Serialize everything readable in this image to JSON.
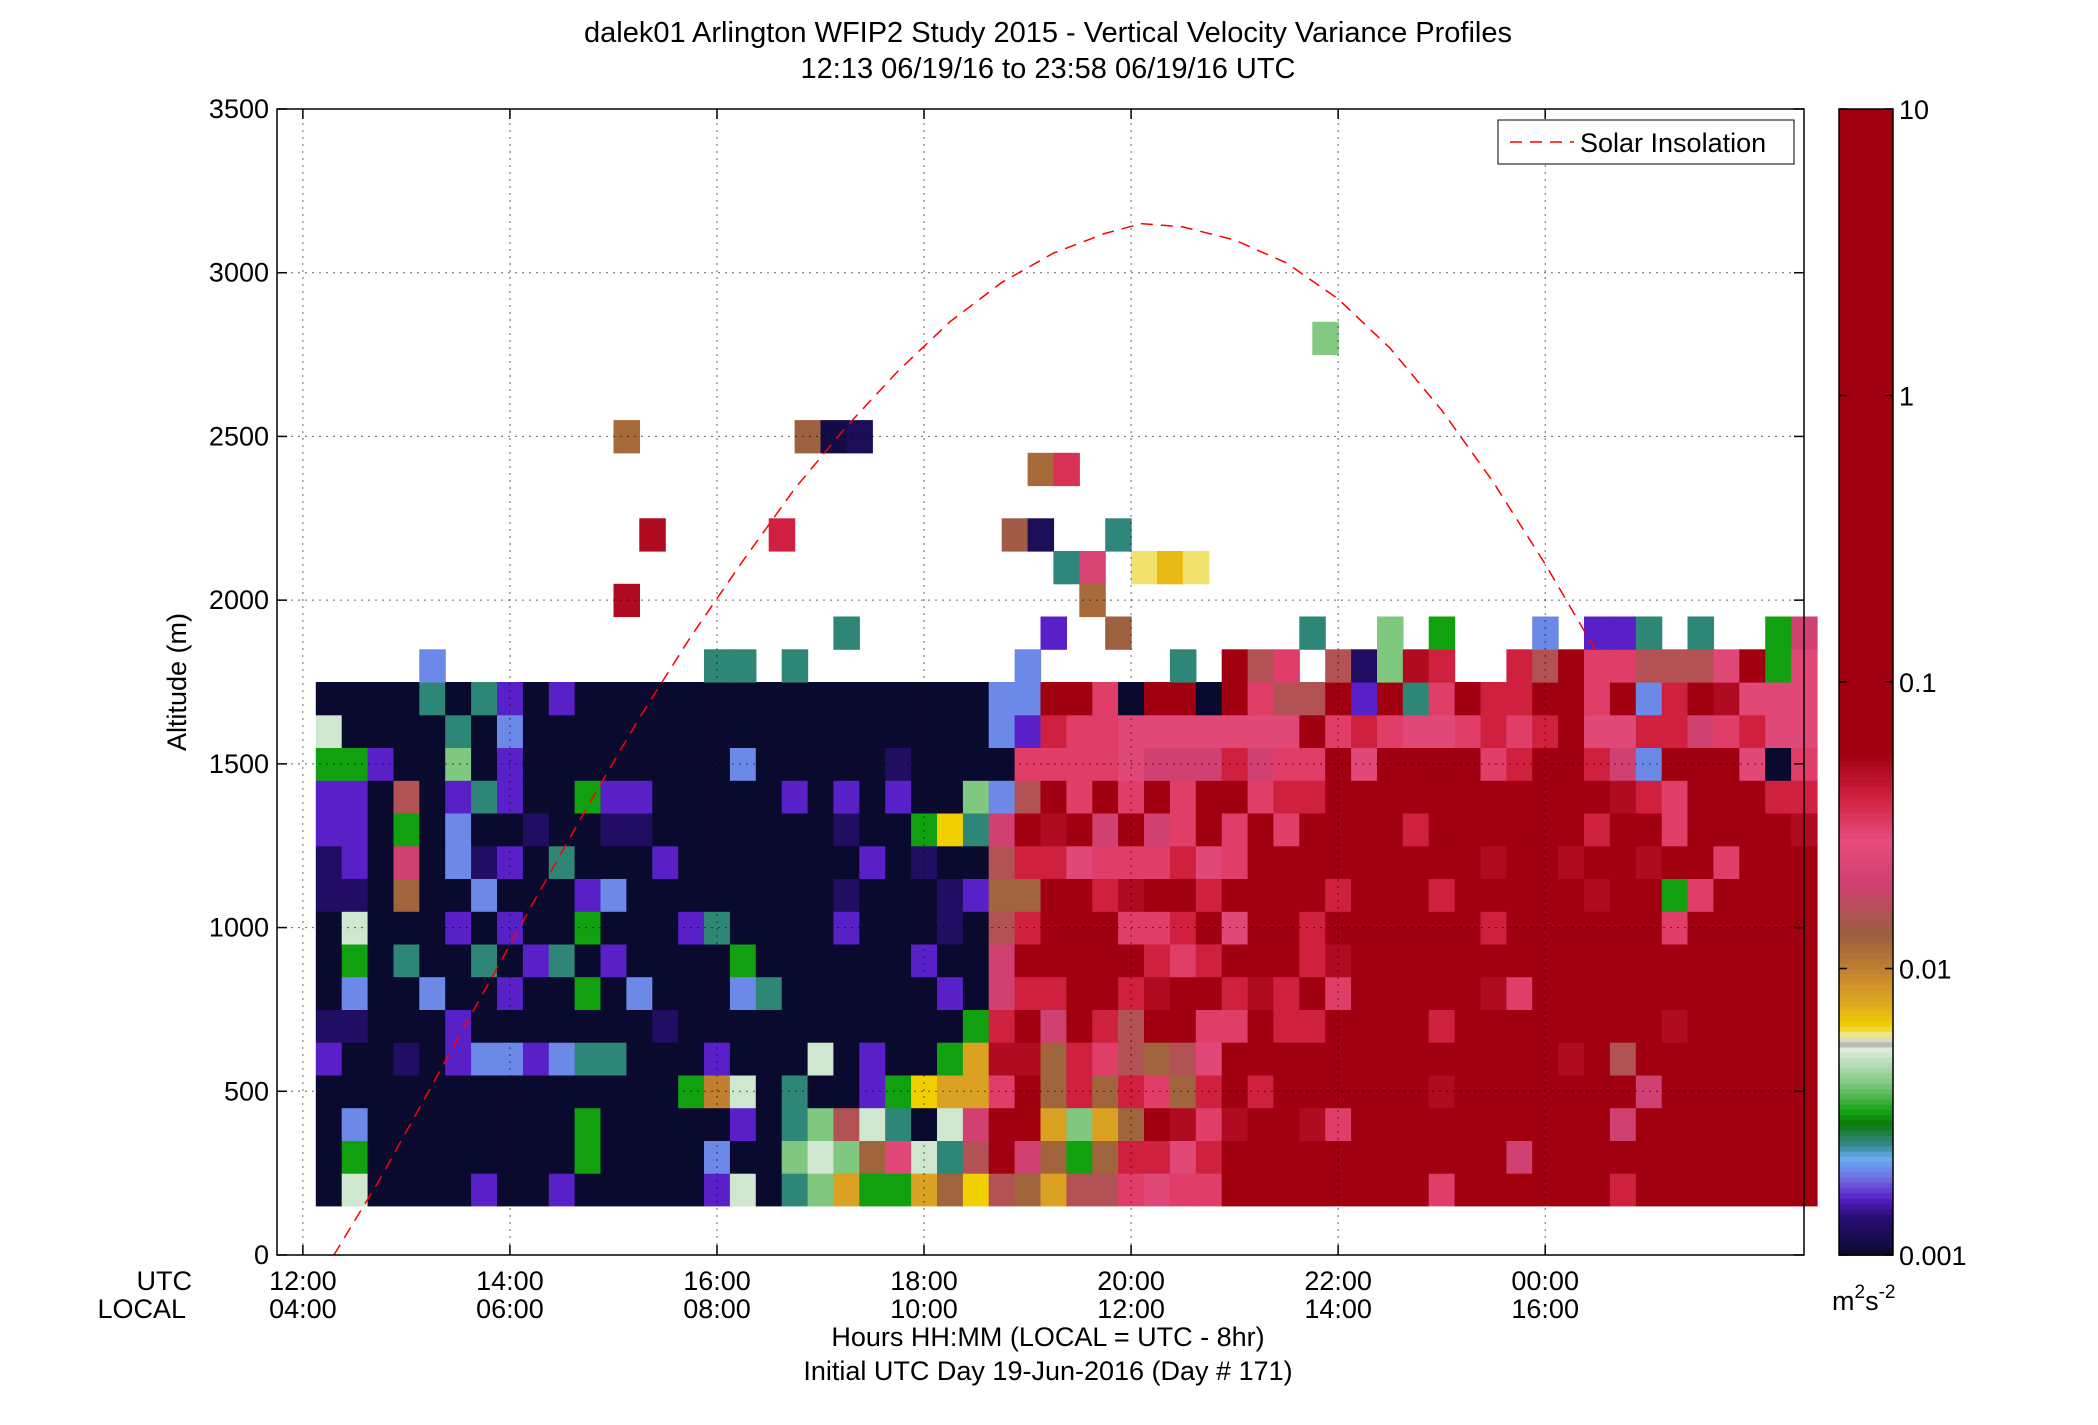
{
  "chart_data": {
    "type": "heatmap",
    "title": "dalek01 Arlington WFIP2 Study 2015 - Vertical Velocity Variance Profiles",
    "subtitle": "12:13 06/19/16 to 23:58 06/19/16  UTC",
    "ylabel": "Altitude (m)",
    "xlabel": "Hours HH:MM  (LOCAL = UTC - 8hr)",
    "xlabel2": "Initial UTC Day 19-Jun-2016 (Day # 171)",
    "row_label_utc": "UTC",
    "row_label_local": "LOCAL",
    "xlim": [
      11.75,
      26.5
    ],
    "ylim": [
      0,
      3500
    ],
    "xticks": [
      12,
      14,
      16,
      18,
      20,
      22,
      24
    ],
    "xtick_labels_utc": [
      "12:00",
      "14:00",
      "16:00",
      "18:00",
      "20:00",
      "22:00",
      "00:00"
    ],
    "xtick_labels_local": [
      "04:00",
      "06:00",
      "08:00",
      "10:00",
      "12:00",
      "14:00",
      "16:00"
    ],
    "yticks": [
      0,
      500,
      1000,
      1500,
      2000,
      2500,
      3000,
      3500
    ],
    "ytick_labels": [
      "0",
      "500",
      "1000",
      "1500",
      "2000",
      "2500",
      "3000",
      "3500"
    ],
    "grid": true,
    "legend": {
      "position": "top-right",
      "entries": [
        {
          "label": "Solar Insolation",
          "color": "#ff0000",
          "style": "dashed"
        }
      ]
    },
    "colorbar": {
      "scale": "log",
      "range": [
        0.001,
        10
      ],
      "tick_values": [
        0.001,
        0.01,
        0.1,
        1,
        10
      ],
      "tick_labels": [
        "0.001",
        "0.01",
        "0.1",
        "1",
        "10"
      ],
      "unit_base": "m",
      "unit_sup1": "2",
      "unit_mid": "s",
      "unit_sup2": "-2",
      "stops": [
        [
          0.0,
          "#0a0a2e"
        ],
        [
          0.14,
          "#2a0f78"
        ],
        [
          0.2,
          "#5a20c8"
        ],
        [
          0.27,
          "#6f6ee0"
        ],
        [
          0.34,
          "#6aaef0"
        ],
        [
          0.38,
          "#3a8a9a"
        ],
        [
          0.46,
          "#0a7a0a"
        ],
        [
          0.5,
          "#10a010"
        ],
        [
          0.6,
          "#80c880"
        ],
        [
          0.73,
          "#e6f0e6"
        ],
        [
          0.74,
          "#a0a0a0"
        ],
        [
          0.76,
          "#f0f0c8"
        ],
        [
          0.8,
          "#f0d000"
        ],
        [
          0.88,
          "#e0a820"
        ],
        [
          1.0,
          "#c08030"
        ],
        [
          1.12,
          "#9a6040"
        ],
        [
          1.3,
          "#d04070"
        ],
        [
          1.45,
          "#e84c7c"
        ],
        [
          1.6,
          "#d02040"
        ],
        [
          1.75,
          "#a00010"
        ]
      ]
    },
    "grid_x": {
      "start": 12.25,
      "step": 0.25
    },
    "grid_y": {
      "start": 200,
      "step": 100
    },
    "row_altitudes_m": [
      200,
      300,
      400,
      500,
      600,
      700,
      800,
      900,
      1000,
      1100,
      1200,
      1300,
      1400,
      1500,
      1600,
      1700,
      1800,
      1900,
      2000,
      2100,
      2200,
      2300,
      2400,
      2500,
      2600,
      2700,
      2800
    ],
    "values_log10": [
      "0.0,0.7,0.0,0.0,0.0,0.0,0.2,0.0,0.0,0.2,0.0,0.0,0.0,0.0,0.0,0.2,0.7,0.0,0.4,0.6,0.9,0.5,0.5,0.9,1.1,0.8,1.2,1.1,0.9,1.2,1.2,1.5,1.4,1.5,1.5,1.8,2.0,2.4,2.2,2.2,2.4,1.9,2.2,1.5,2.3,1.8,2.0,1.8,2.2,2.2,1.6,2.2,2.2,2.2,2.1,2.1,2.2,2.3",
      "0.0,0.5,0.0,0.0,0.0,0.0,0.0,0.0,0.0,0.0,0.5,0.0,0.0,0.0,0.0,0.3,0.0,0.0,0.6,0.7,0.6,1.1,1.4,0.7,0.4,1.2,2.3,1.3,1.1,0.5,1.1,1.6,1.6,1.4,1.6,1.9,2.4,1.8,1.9,1.8,2.5,2.0,2.1,2.2,2.3,2.4,1.3,2.3,2.3,2.1,1.8,2.0,2.2,2.3,2.3,2.4,2.4,2.5",
      "0.0,0.3,0.0,0.0,0.0,0.0,0.0,0.0,0.0,0.0,0.5,0.0,0.0,0.0,0.0,0.0,0.2,0.0,0.4,0.6,1.2,0.7,0.4,0.0,0.7,1.3,2.2,2.1,0.9,0.6,0.9,1.1,1.8,1.7,1.5,1.7,2.0,2.5,1.7,1.5,2.2,2.2,2.0,2.1,2.3,2.1,2.3,2.3,2.4,2.2,1.3,2.3,2.3,2.4,2.4,2.4,2.3,2.4",
      "0.0,0.0,0.0,0.0,0.0,0.0,0.0,0.0,0.0,0.0,0.0,0.0,0.0,0.0,0.5,1.0,0.7,0.0,0.4,0.0,0.0,0.2,0.5,0.8,0.9,0.9,1.5,1.9,1.1,1.6,1.1,1.6,1.5,1.1,1.6,2.1,1.6,2.3,1.9,1.8,2.3,1.9,2.3,1.7,2.3,1.9,2.3,2.1,2.0,2.1,2.1,1.3,2.3,2.3,2.5,2.3,2.5,2.5",
      "0.2,0.0,0.0,0.1,0.0,0.2,0.3,0.3,0.2,0.3,0.4,0.4,0.0,0.0,0.0,0.2,0.0,0.0,0.0,0.7,0.0,0.2,0.0,0.0,0.5,0.9,1.7,1.7,1.1,1.6,1.5,1.2,1.1,1.2,1.4,1.9,2.0,2.5,1.8,1.9,2.3,2.1,2.3,2.0,2.0,2.2,2.1,2.3,1.7,2.2,1.2,2.3,2.1,2.2,2.3,2.1,2.4,2.5",
      "0.1,0.1,0.0,0.0,0.0,0.2,0.0,0.0,0.0,0.0,0.0,0.0,0.0,0.1,0.0,0.0,0.0,0.0,0.0,0.0,0.0,0.0,0.0,0.0,0.0,0.5,1.6,2.0,1.3,1.8,1.6,1.2,1.9,2.0,1.5,1.5,1.9,1.6,1.6,2.2,2.4,2.0,1.9,1.6,1.8,2.1,2.2,2.4,2.4,2.1,2.1,2.2,1.7,2.3,2.2,2.4,2.3,2.3",
      "0.0,0.3,0.0,0.0,0.3,0.0,0.0,0.2,0.0,0.0,0.5,0.0,0.3,0.0,0.0,0.0,0.3,0.4,0.0,0.0,0.0,0.0,0.0,0.0,0.2,0.0,1.3,1.6,1.6,1.8,1.8,1.6,1.7,1.9,1.8,1.6,1.7,1.6,1.9,1.5,1.8,2.1,2.3,2.2,1.8,1.7,1.5,2.3,2.3,1.9,2.2,1.8,2.1,2.2,1.8,2.0,2.2,2.5",
      "0.0,0.5,0.0,0.4,0.0,0.0,0.4,0.0,0.2,0.4,0.0,0.2,0.0,0.0,0.0,0.0,0.5,0.0,0.0,0.0,0.0,0.0,0.0,0.2,0.0,0.0,1.3,1.8,1.9,2.1,1.8,1.8,1.6,1.5,1.6,1.8,1.8,1.8,1.6,1.7,2.2,2.4,2.2,1.8,2.4,2.1,2.0,2.3,2.3,1.8,2.1,2.3,1.9,1.9,2.2,2.3,2.1,2.2",
      "0.0,0.7,0.0,0.0,0.0,0.2,0.0,0.2,0.0,0.0,0.5,0.0,0.0,0.0,0.2,0.4,0.0,0.0,0.0,0.0,0.2,0.0,0.0,0.0,0.1,0.0,1.2,1.6,1.9,1.9,2.6,1.5,1.5,1.6,2.2,1.4,2.1,1.8,1.6,2.0,2.4,2.5,2.3,1.9,1.8,1.6,2.5,2.3,2.4,2.4,1.8,2.2,1.5,1.9,2.2,2.3,2.0,2.1",
      "0.1,0.1,0.0,1.1,0.0,0.0,0.3,0.0,0.0,0.0,0.2,0.3,0.0,0.0,0.0,0.0,0.0,0.0,0.0,0.0,0.1,0.0,0.0,0.0,0.1,0.2,1.1,1.1,2.2,1.8,1.6,1.7,1.8,2.2,1.6,1.8,2.2,2.4,2.3,1.6,2.3,2.5,2.2,1.6,2.3,2.5,2.3,2.4,2.6,1.7,2.3,1.8,0.5,1.5,2.3,2.5,2.2,2.0",
      "0.1,0.2,0.0,1.3,0.0,0.3,0.1,0.2,0.0,0.4,0.0,0.0,0.0,0.2,0.0,0.0,0.0,0.0,0.0,0.0,0.0,0.2,0.0,0.1,0.0,0.0,1.2,1.6,1.6,1.4,1.5,1.5,1.5,1.6,1.4,1.5,2.1,1.9,2.5,2.5,1.9,2.5,1.9,1.9,2.3,1.7,3.2,2.4,1.7,2.0,1.8,1.7,1.9,1.8,1.5,2.2,2.5,2.4",
      "0.2,0.2,0.0,0.5,0.0,0.3,0.0,0.0,0.1,0.0,0.0,0.1,0.1,0.0,0.0,0.0,0.0,0.0,0.0,0.0,0.1,0.0,0.0,0.5,0.8,0.4,1.3,2.0,1.7,1.9,1.3,1.9,1.3,1.5,2.0,1.5,2.0,1.5,1.8,2.3,2.1,2.2,1.6,1.9,1.8,2.8,2.0,2.8,2.1,1.6,2.3,2.2,1.5,1.8,2.1,2.2,2.1,1.7",
      "0.2,0.2,0.0,1.2,0.0,0.2,0.4,0.2,0.0,0.0,0.5,0.2,0.2,0.0,0.0,0.0,0.0,0.0,0.2,0.0,0.2,0.0,0.2,0.0,0.0,0.6,0.3,1.2,1.9,1.5,2.2,1.5,1.8,1.5,1.8,1.8,1.5,1.6,1.6,2.2,2.1,2.3,2.1,2.0,2.2,2.0,2.4,2.1,2.2,1.8,1.7,1.6,1.5,2.0,2.3,2.2,1.6,1.6",
      "0.5,0.5,0.2,0.0,0.0,0.6,0.0,0.2,0.0,0.0,0.0,0.0,0.0,0.0,0.0,0.0,0.3,0.0,0.0,0.0,0.0,0.0,0.1,0.0,0.0,0.0,0.0,1.5,1.5,1.5,1.5,1.4,1.3,1.3,1.3,1.6,1.3,1.5,1.5,1.9,1.4,1.8,2.0,1.8,2.2,1.5,1.6,1.8,2.3,1.6,1.3,0.3,2.2,2.0,1.8,1.4,0.0,1.5",
      "0.7,0.0,0.0,0.0,0.0,0.4,0.0,0.3,0.0,0.0,0.0,0.0,0.0,0.0,0.0,0.0,0.0,0.0,0.0,0.0,0.0,0.0,0.0,0.0,0.0,0.0,0.3,0.2,1.6,1.5,1.5,1.4,1.4,1.4,1.4,1.4,1.4,1.4,1.8,1.5,1.6,1.5,1.4,1.4,1.5,1.6,1.5,1.6,2.0,1.4,1.4,1.6,1.6,1.3,1.5,1.6,1.4,1.4",
      "0.0,0.0,0.0,0.0,0.4,0.0,0.4,0.2,0.0,0.2,0.0,0.0,0.0,0.0,0.0,0.0,0.0,0.0,0.0,0.0,0.0,0.0,0.0,0.0,0.0,0.0,0.3,0.3,1.8,2.0,1.5,0.0,1.8,1.8,0.0,2.0,1.5,1.2,1.2,1.8,0.2,2.0,0.4,1.5,1.8,1.6,1.6,2.0,1.8,1.5,2.0,0.3,1.6,1.9,1.7,1.4,1.4,1.4",
      "0.0,0.0,0.0,0.0,0.3,0.0,0.0,0.0,0.0,0.0,0.0,0.0,0.0,0.0,0.0,0.4,0.4,0.0,0.4,0.0,0.0,0.0,0.0,0.0,0.0,0.0,0.0,0.3,0.0,0.0,0.0,0.0,0.0,0.4,0.0,1.8,1.2,1.5,0.0,1.2,0.1,0.6,1.7,1.6,0.0,0.0,1.6,1.2,1.8,1.5,1.5,1.2,1.2,1.2,1.4,2.1,0.5,1.4",
      "0.0,0.0,0.0,0.0,0.0,0.0,0.0,0.0,0.0,0.0,0.0,0.0,0.0,0.0,0.0,0.0,0.0,0.0,0.0,0.0,0.4,0.0,0.0,0.0,0.0,0.0,0.0,0.0,0.2,0.0,0.0,0.0,0.0,0.0,0.0,0.0,0.0,0.0,0.4,0.0,0.0,0.6,0.0,0.5,0.0,0.0,0.0,0.3,0.0,0.2,0.2,0.4,0.0,0.4,0.0,0.0,0.5,1.3",
      "0.0,0.0,0.0,0.0,0.0,0.0,0.0,0.0,0.0,0.0,0.0,0.0,0.0,0.0,0.0,0.0,0.0,0.0,0.0,0.0,0.0,0.0,0.0,0.0,0.0,0.0,0.0,0.0,0.0,0.0,0.0,0.0,0.0,0.0,0.0,0.0,0.0,0.0,0.0,0.0,0.0,0.0,0.0,0.0,0.0,0.0,0.0,0.0,0.0,0.0,0.0,0.0,0.0,0.0,0.0,0.0,0.0,0.0"
    ],
    "solar_insolation_curve_m": [
      [
        12.3,
        0
      ],
      [
        12.75,
        235
      ],
      [
        13.25,
        520
      ],
      [
        13.75,
        805
      ],
      [
        14.25,
        1090
      ],
      [
        14.75,
        1370
      ],
      [
        15.25,
        1640
      ],
      [
        15.75,
        1890
      ],
      [
        16.25,
        2120
      ],
      [
        16.75,
        2340
      ],
      [
        17.25,
        2530
      ],
      [
        17.75,
        2700
      ],
      [
        18.25,
        2850
      ],
      [
        18.75,
        2970
      ],
      [
        19.25,
        3060
      ],
      [
        19.75,
        3120
      ],
      [
        20.1,
        3150
      ],
      [
        20.5,
        3140
      ],
      [
        21.0,
        3100
      ],
      [
        21.5,
        3030
      ],
      [
        22.0,
        2920
      ],
      [
        22.5,
        2770
      ],
      [
        23.0,
        2580
      ],
      [
        23.5,
        2360
      ],
      [
        24.0,
        2110
      ],
      [
        24.5,
        1840
      ]
    ]
  },
  "sparse_cells": [
    {
      "x": 21.875,
      "alt": 2800,
      "v": 0.004
    },
    {
      "x": 15.125,
      "alt": 2500,
      "v": 0.012
    },
    {
      "x": 16.875,
      "alt": 2500,
      "v": 0.013
    },
    {
      "x": 17.125,
      "alt": 2500,
      "v": 0.0011
    },
    {
      "x": 17.375,
      "alt": 2500,
      "v": 0.0012
    },
    {
      "x": 19.125,
      "alt": 2400,
      "v": 0.012
    },
    {
      "x": 19.375,
      "alt": 2400,
      "v": 0.035
    },
    {
      "x": 15.375,
      "alt": 2200,
      "v": 0.05
    },
    {
      "x": 16.625,
      "alt": 2200,
      "v": 0.04
    },
    {
      "x": 18.875,
      "alt": 2200,
      "v": 0.014
    },
    {
      "x": 19.125,
      "alt": 2200,
      "v": 0.0012
    },
    {
      "x": 19.875,
      "alt": 2200,
      "v": 0.0025
    },
    {
      "x": 19.375,
      "alt": 2100,
      "v": 0.0025
    },
    {
      "x": 19.625,
      "alt": 2100,
      "v": 0.022
    },
    {
      "x": 20.125,
      "alt": 2100,
      "v": 0.006
    },
    {
      "x": 20.375,
      "alt": 2100,
      "v": 0.007
    },
    {
      "x": 20.625,
      "alt": 2100,
      "v": 0.006
    },
    {
      "x": 15.125,
      "alt": 2000,
      "v": 0.05
    },
    {
      "x": 19.875,
      "alt": 1900,
      "v": 0.013
    },
    {
      "x": 19.625,
      "alt": 2000,
      "v": 0.012
    }
  ]
}
